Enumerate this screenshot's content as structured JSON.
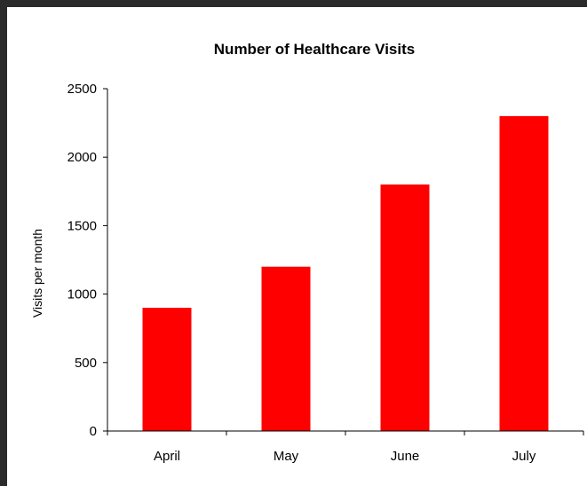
{
  "chart_data": {
    "type": "bar",
    "title": "Number of Healthcare Visits",
    "xlabel": "",
    "ylabel": "Visits per month",
    "categories": [
      "April",
      "May",
      "June",
      "July"
    ],
    "values": [
      900,
      1200,
      1800,
      2300
    ],
    "ylim": [
      0,
      2500
    ],
    "yticks": [
      0,
      500,
      1000,
      1500,
      2000,
      2500
    ],
    "bar_color": "#ff0000",
    "grid": false,
    "legend": "none"
  }
}
